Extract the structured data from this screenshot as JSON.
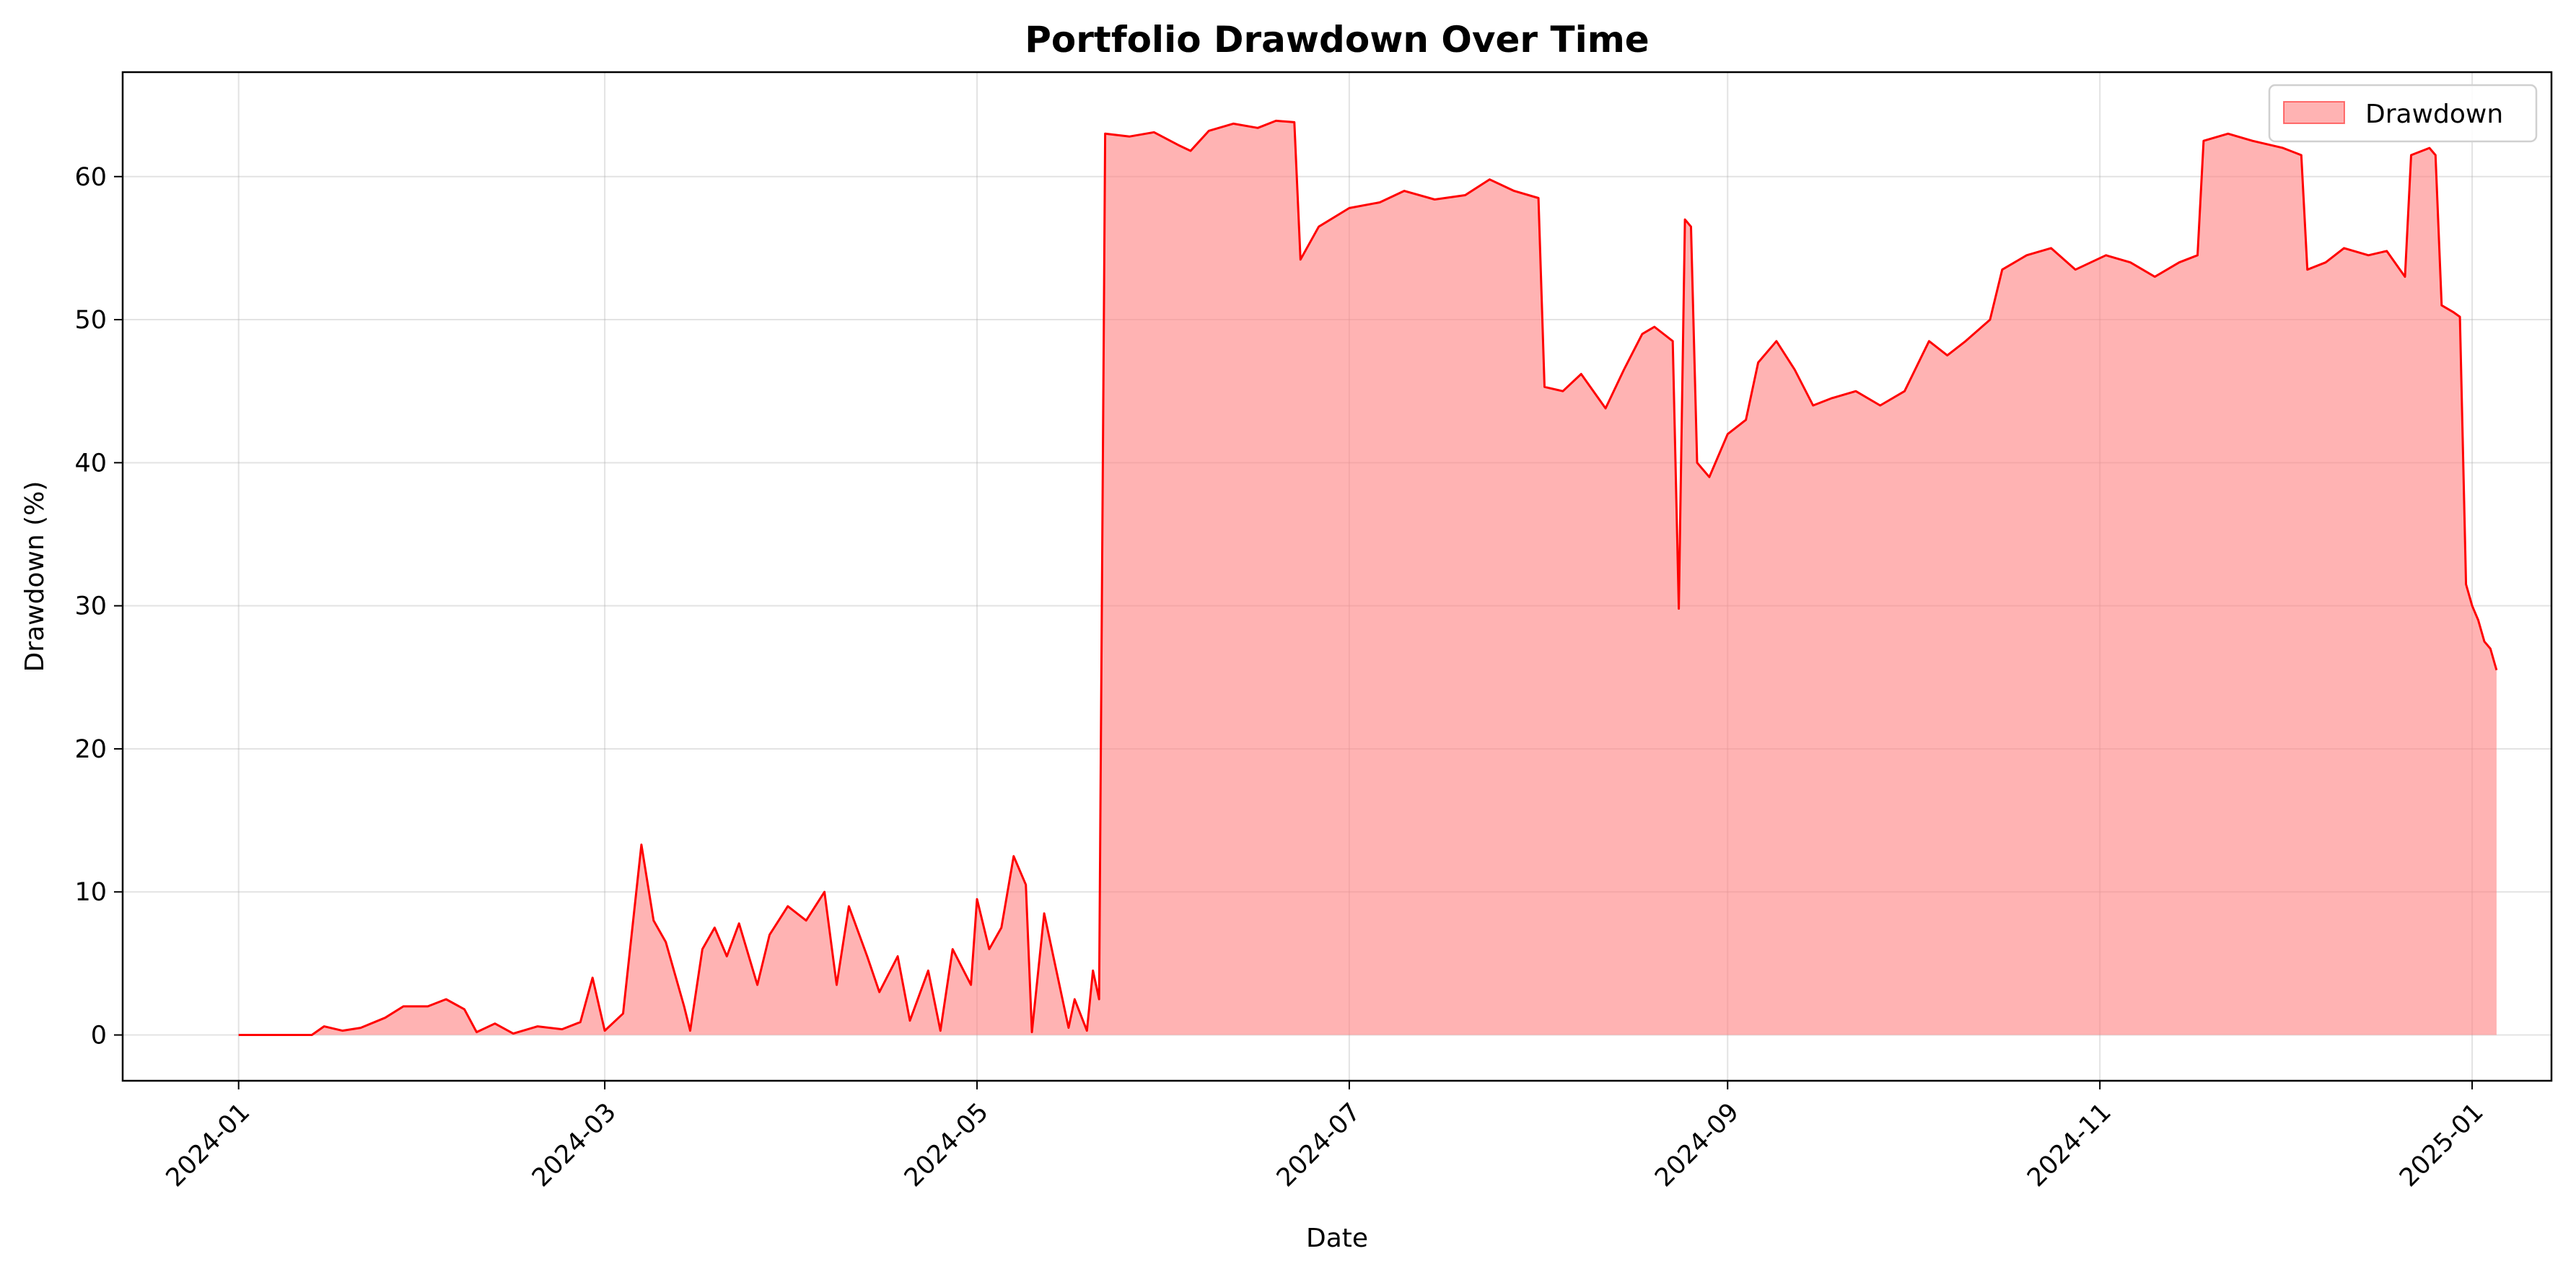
{
  "chart_data": {
    "type": "area",
    "title": "Portfolio Drawdown Over Time",
    "xlabel": "Date",
    "ylabel": "Drawdown (%)",
    "xlim": [
      "2023-12-13",
      "2025-01-14"
    ],
    "ylim": [
      -3.2,
      67.3
    ],
    "x_ticks": [
      "2024-01",
      "2024-03",
      "2024-05",
      "2024-07",
      "2024-09",
      "2024-11",
      "2025-01"
    ],
    "y_ticks": [
      0,
      10,
      20,
      30,
      40,
      50,
      60
    ],
    "grid": true,
    "legend": {
      "position": "top-right",
      "entries": [
        "Drawdown"
      ]
    },
    "colors": {
      "line": "#ff0000",
      "fill": "#ff8080",
      "fill_opacity": 0.6
    },
    "series": [
      {
        "name": "Drawdown",
        "points": [
          [
            "2024-01-01",
            0
          ],
          [
            "2024-01-13",
            0
          ],
          [
            "2024-01-15",
            0.6
          ],
          [
            "2024-01-18",
            0.3
          ],
          [
            "2024-01-21",
            0.5
          ],
          [
            "2024-01-25",
            1.2
          ],
          [
            "2024-01-28",
            2.0
          ],
          [
            "2024-02-01",
            2.0
          ],
          [
            "2024-02-04",
            2.5
          ],
          [
            "2024-02-07",
            1.8
          ],
          [
            "2024-02-09",
            0.2
          ],
          [
            "2024-02-12",
            0.8
          ],
          [
            "2024-02-15",
            0.1
          ],
          [
            "2024-02-19",
            0.6
          ],
          [
            "2024-02-23",
            0.4
          ],
          [
            "2024-02-26",
            0.9
          ],
          [
            "2024-02-28",
            4.0
          ],
          [
            "2024-03-01",
            0.3
          ],
          [
            "2024-03-04",
            1.5
          ],
          [
            "2024-03-07",
            13.3
          ],
          [
            "2024-03-09",
            8.0
          ],
          [
            "2024-03-11",
            6.5
          ],
          [
            "2024-03-14",
            2.0
          ],
          [
            "2024-03-15",
            0.3
          ],
          [
            "2024-03-17",
            6.0
          ],
          [
            "2024-03-19",
            7.5
          ],
          [
            "2024-03-21",
            5.5
          ],
          [
            "2024-03-23",
            7.8
          ],
          [
            "2024-03-26",
            3.5
          ],
          [
            "2024-03-28",
            7.0
          ],
          [
            "2024-03-31",
            9.0
          ],
          [
            "2024-04-03",
            8.0
          ],
          [
            "2024-04-06",
            10.0
          ],
          [
            "2024-04-08",
            3.5
          ],
          [
            "2024-04-10",
            9.0
          ],
          [
            "2024-04-13",
            5.5
          ],
          [
            "2024-04-15",
            3.0
          ],
          [
            "2024-04-18",
            5.5
          ],
          [
            "2024-04-20",
            1.0
          ],
          [
            "2024-04-23",
            4.5
          ],
          [
            "2024-04-25",
            0.3
          ],
          [
            "2024-04-27",
            6.0
          ],
          [
            "2024-04-30",
            3.5
          ],
          [
            "2024-05-01",
            9.5
          ],
          [
            "2024-05-03",
            6.0
          ],
          [
            "2024-05-05",
            7.5
          ],
          [
            "2024-05-07",
            12.5
          ],
          [
            "2024-05-09",
            10.5
          ],
          [
            "2024-05-10",
            0.2
          ],
          [
            "2024-05-12",
            8.5
          ],
          [
            "2024-05-14",
            4.5
          ],
          [
            "2024-05-16",
            0.5
          ],
          [
            "2024-05-17",
            2.5
          ],
          [
            "2024-05-19",
            0.3
          ],
          [
            "2024-05-20",
            4.5
          ],
          [
            "2024-05-21",
            2.5
          ],
          [
            "2024-05-22",
            63.0
          ],
          [
            "2024-05-26",
            62.8
          ],
          [
            "2024-05-30",
            63.1
          ],
          [
            "2024-06-03",
            62.2
          ],
          [
            "2024-06-05",
            61.8
          ],
          [
            "2024-06-08",
            63.2
          ],
          [
            "2024-06-12",
            63.7
          ],
          [
            "2024-06-16",
            63.4
          ],
          [
            "2024-06-19",
            63.9
          ],
          [
            "2024-06-22",
            63.8
          ],
          [
            "2024-06-23",
            54.2
          ],
          [
            "2024-06-26",
            56.5
          ],
          [
            "2024-07-01",
            57.8
          ],
          [
            "2024-07-06",
            58.2
          ],
          [
            "2024-07-10",
            59.0
          ],
          [
            "2024-07-15",
            58.4
          ],
          [
            "2024-07-20",
            58.7
          ],
          [
            "2024-07-24",
            59.8
          ],
          [
            "2024-07-28",
            59.0
          ],
          [
            "2024-08-01",
            58.5
          ],
          [
            "2024-08-02",
            45.3
          ],
          [
            "2024-08-05",
            45.0
          ],
          [
            "2024-08-08",
            46.2
          ],
          [
            "2024-08-12",
            43.8
          ],
          [
            "2024-08-15",
            46.5
          ],
          [
            "2024-08-18",
            49.0
          ],
          [
            "2024-08-20",
            49.5
          ],
          [
            "2024-08-23",
            48.5
          ],
          [
            "2024-08-24",
            29.8
          ],
          [
            "2024-08-25",
            57.0
          ],
          [
            "2024-08-26",
            56.5
          ],
          [
            "2024-08-27",
            40.0
          ],
          [
            "2024-08-29",
            39.0
          ],
          [
            "2024-09-01",
            42.0
          ],
          [
            "2024-09-04",
            43.0
          ],
          [
            "2024-09-06",
            47.0
          ],
          [
            "2024-09-09",
            48.5
          ],
          [
            "2024-09-12",
            46.5
          ],
          [
            "2024-09-15",
            44.0
          ],
          [
            "2024-09-18",
            44.5
          ],
          [
            "2024-09-22",
            45.0
          ],
          [
            "2024-09-26",
            44.0
          ],
          [
            "2024-09-30",
            45.0
          ],
          [
            "2024-10-04",
            48.5
          ],
          [
            "2024-10-07",
            47.5
          ],
          [
            "2024-10-10",
            48.5
          ],
          [
            "2024-10-14",
            50.0
          ],
          [
            "2024-10-16",
            53.5
          ],
          [
            "2024-10-20",
            54.5
          ],
          [
            "2024-10-24",
            55.0
          ],
          [
            "2024-10-28",
            53.5
          ],
          [
            "2024-11-02",
            54.5
          ],
          [
            "2024-11-06",
            54.0
          ],
          [
            "2024-11-10",
            53.0
          ],
          [
            "2024-11-14",
            54.0
          ],
          [
            "2024-11-17",
            54.5
          ],
          [
            "2024-11-18",
            62.5
          ],
          [
            "2024-11-22",
            63.0
          ],
          [
            "2024-11-26",
            62.5
          ],
          [
            "2024-12-01",
            62.0
          ],
          [
            "2024-12-04",
            61.5
          ],
          [
            "2024-12-05",
            53.5
          ],
          [
            "2024-12-08",
            54.0
          ],
          [
            "2024-12-11",
            55.0
          ],
          [
            "2024-12-15",
            54.5
          ],
          [
            "2024-12-18",
            54.8
          ],
          [
            "2024-12-21",
            53.0
          ],
          [
            "2024-12-22",
            61.5
          ],
          [
            "2024-12-25",
            62.0
          ],
          [
            "2024-12-26",
            61.5
          ],
          [
            "2024-12-27",
            51.0
          ],
          [
            "2024-12-29",
            50.5
          ],
          [
            "2024-12-30",
            50.2
          ],
          [
            "2024-12-31",
            31.5
          ],
          [
            "2025-01-01",
            30.0
          ],
          [
            "2025-01-02",
            29.0
          ],
          [
            "2025-01-03",
            27.5
          ],
          [
            "2025-01-04",
            27.0
          ],
          [
            "2025-01-05",
            25.5
          ]
        ]
      }
    ]
  }
}
